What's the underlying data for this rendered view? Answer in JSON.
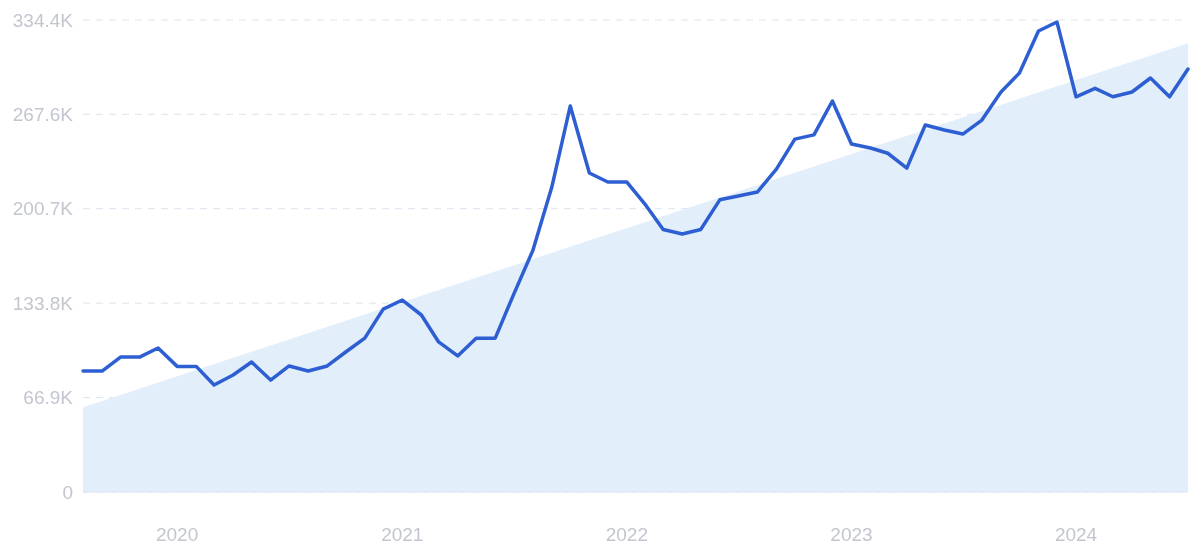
{
  "chart_data": {
    "type": "line",
    "x": [
      "2019-08",
      "2019-09",
      "2019-10",
      "2019-11",
      "2019-12",
      "2020-01",
      "2020-02",
      "2020-03",
      "2020-04",
      "2020-05",
      "2020-06",
      "2020-07",
      "2020-08",
      "2020-09",
      "2020-10",
      "2020-11",
      "2020-12",
      "2021-01",
      "2021-02",
      "2021-03",
      "2021-04",
      "2021-05",
      "2021-06",
      "2021-07",
      "2021-08",
      "2021-09",
      "2021-10",
      "2021-11",
      "2021-12",
      "2022-01",
      "2022-02",
      "2022-03",
      "2022-04",
      "2022-05",
      "2022-06",
      "2022-07",
      "2022-08",
      "2022-09",
      "2022-10",
      "2022-11",
      "2022-12",
      "2023-01",
      "2023-02",
      "2023-03",
      "2023-04",
      "2023-05",
      "2023-06",
      "2023-07",
      "2023-08",
      "2023-09",
      "2023-10",
      "2023-11",
      "2023-12",
      "2024-01",
      "2024-02",
      "2024-03",
      "2024-04",
      "2024-05",
      "2024-06",
      "2024-07"
    ],
    "series": [
      {
        "type": "area",
        "color": "#e3eefb",
        "x": [
          "2019-08",
          "2024-07"
        ],
        "values": [
          60,
          318
        ]
      },
      {
        "color": "#2d5fd3",
        "values": [
          85.7,
          85.7,
          95.6,
          95.6,
          102,
          89,
          89,
          75.8,
          82.9,
          92.1,
          79.3,
          89.3,
          85.7,
          89.3,
          99.2,
          109,
          129.6,
          136,
          125.4,
          106.3,
          96.4,
          109,
          109,
          140,
          171,
          216,
          273.5,
          226,
          219.6,
          219.6,
          203,
          186,
          182.8,
          186,
          207,
          209.7,
          212.5,
          228.8,
          250,
          253,
          277,
          246.5,
          243.7,
          240,
          229.5,
          260,
          256.5,
          253.6,
          263.5,
          283.4,
          296.8,
          326.6,
          333,
          280,
          286,
          280,
          283.4,
          293.3,
          280,
          299.7
        ]
      }
    ],
    "xlim": [
      "2019-08",
      "2024-07"
    ],
    "xticks": [
      "2020",
      "2021",
      "2022",
      "2023",
      "2024"
    ],
    "ylim": [
      0,
      334.4
    ],
    "yticks": [
      0,
      {
        "value": 66.9,
        "label": "66.9K"
      },
      {
        "value": 133.8,
        "label": "133.8K"
      },
      {
        "value": 200.7,
        "label": "200.7K"
      },
      {
        "value": 267.6,
        "label": "267.6K"
      },
      {
        "value": 334.4,
        "label": "334.4K"
      }
    ],
    "grid": "y",
    "marker": "none",
    "line_style": "solid"
  }
}
